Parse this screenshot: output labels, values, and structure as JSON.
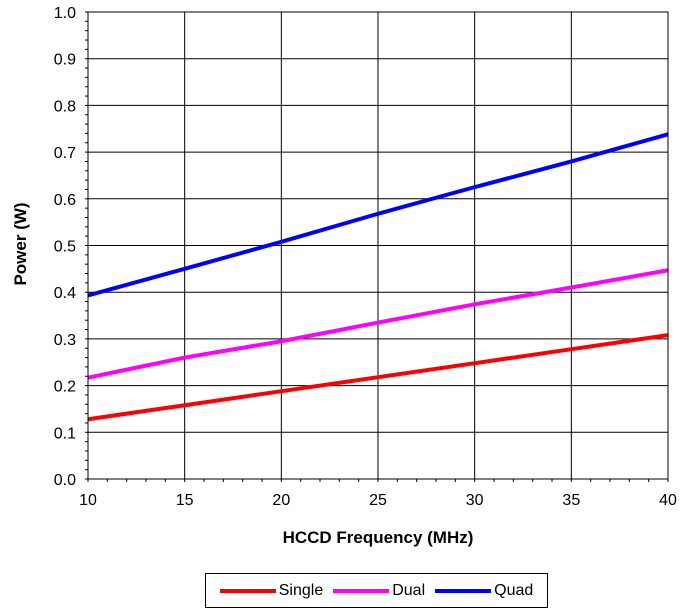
{
  "chart_data": {
    "type": "line",
    "title": "",
    "xlabel": "HCCD Frequency (MHz)",
    "ylabel": "Power (W)",
    "xlim": [
      10,
      40
    ],
    "ylim": [
      0.0,
      1.0
    ],
    "x_ticks": [
      "10",
      "15",
      "20",
      "25",
      "30",
      "35",
      "40"
    ],
    "y_ticks": [
      "0.0",
      "0.1",
      "0.2",
      "0.3",
      "0.4",
      "0.5",
      "0.6",
      "0.7",
      "0.8",
      "0.9",
      "1.0"
    ],
    "grid": true,
    "legend_position": "bottom",
    "series": [
      {
        "name": "Single",
        "color": "#ff0000",
        "x": [
          10,
          15,
          20,
          25,
          30,
          35,
          40
        ],
        "values": [
          0.128,
          0.158,
          0.188,
          0.218,
          0.248,
          0.278,
          0.308
        ]
      },
      {
        "name": "Dual",
        "color": "#ff00ff",
        "x": [
          10,
          15,
          20,
          25,
          30,
          35,
          40
        ],
        "values": [
          0.217,
          0.26,
          0.295,
          0.335,
          0.374,
          0.41,
          0.447
        ]
      },
      {
        "name": "Quad",
        "color": "#0000ff",
        "x": [
          10,
          15,
          20,
          25,
          30,
          35,
          40
        ],
        "values": [
          0.393,
          0.45,
          0.508,
          0.568,
          0.625,
          0.68,
          0.738
        ]
      }
    ]
  }
}
